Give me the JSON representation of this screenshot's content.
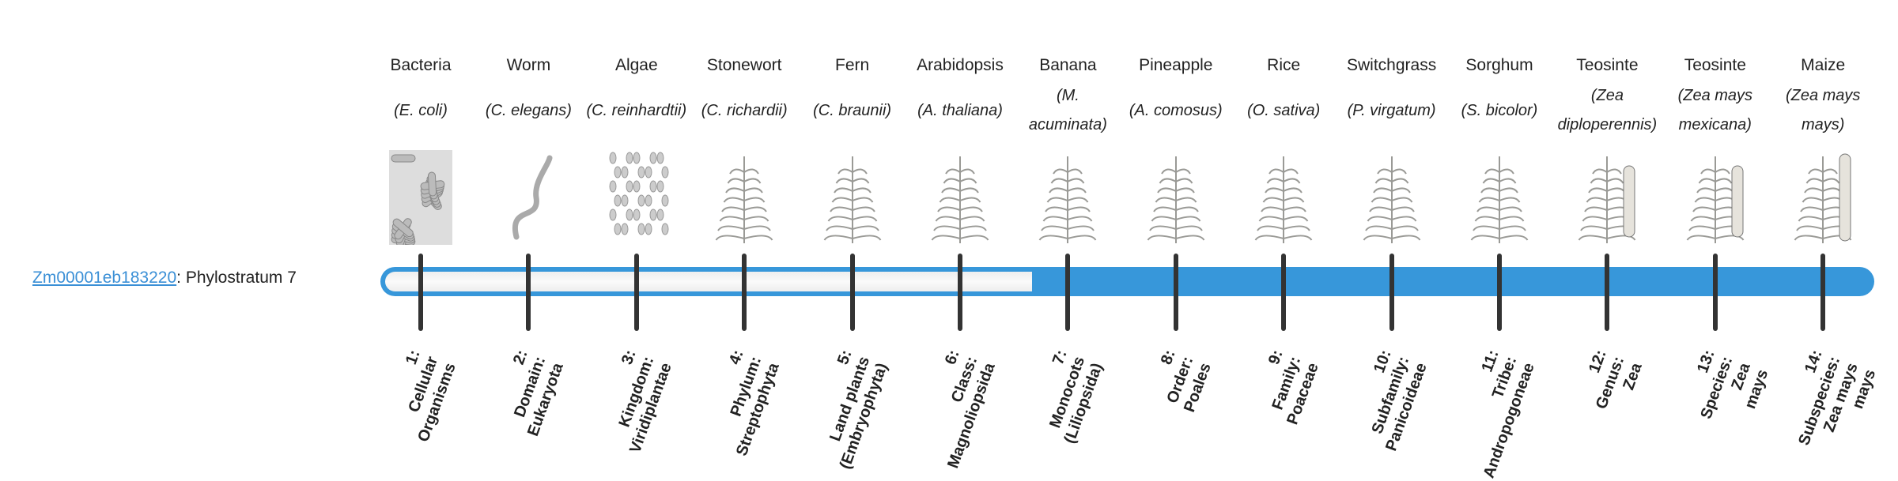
{
  "gene": {
    "id": "Zm00001eb183220",
    "suffix": ": Phylostratum 7"
  },
  "phylostratum": 7,
  "colors": {
    "accent": "#3797da",
    "tick": "#333333",
    "empty": "#f5f5f5"
  },
  "organisms": [
    {
      "common": "Bacteria",
      "species": "(E. coli)",
      "icon": "bacteria-illustration"
    },
    {
      "common": "Worm",
      "species": "(C. elegans)",
      "icon": "worm-illustration"
    },
    {
      "common": "Algae",
      "species": "(C. reinhardtii)",
      "icon": "algae-illustration"
    },
    {
      "common": "Stonewort",
      "species": "(C. richardii)",
      "icon": "stonewort-illustration"
    },
    {
      "common": "Fern",
      "species": "(C. braunii)",
      "icon": "fern-illustration"
    },
    {
      "common": "Arabidopsis",
      "species": "(A. thaliana)",
      "icon": "arabidopsis-illustration"
    },
    {
      "common": "Banana",
      "species": "(M. acuminata)",
      "icon": "banana-illustration"
    },
    {
      "common": "Pineapple",
      "species": "(A. comosus)",
      "icon": "pineapple-illustration"
    },
    {
      "common": "Rice",
      "species": "(O. sativa)",
      "icon": "rice-illustration"
    },
    {
      "common": "Switchgrass",
      "species": "(P. virgatum)",
      "icon": "switchgrass-illustration"
    },
    {
      "common": "Sorghum",
      "species": "(S. bicolor)",
      "icon": "sorghum-illustration"
    },
    {
      "common": "Teosinte",
      "species": "(Zea diploperennis)",
      "icon": "teosinte-illustration"
    },
    {
      "common": "Teosinte",
      "species": "(Zea mays mexicana)",
      "icon": "teosinte-mexicana-illustration"
    },
    {
      "common": "Maize",
      "species": "(Zea mays mays)",
      "icon": "maize-illustration"
    }
  ],
  "strata": [
    {
      "line1": "1:",
      "line2": "Cellular",
      "line3": "Organisms"
    },
    {
      "line1": "2:",
      "line2": "Domain:",
      "line3": "Eukaryota"
    },
    {
      "line1": "3:",
      "line2": "Kingdom:",
      "line3": "Viridiplantae"
    },
    {
      "line1": "4:",
      "line2": "Phylum:",
      "line3": "Streptophyta"
    },
    {
      "line1": "5:",
      "line2": "Land plants",
      "line3": "(Embryophyta)"
    },
    {
      "line1": "6:",
      "line2": "Class:",
      "line3": "Magnoliopsida"
    },
    {
      "line1": "7:",
      "line2": "Monocots",
      "line3": "(Liliopsida)"
    },
    {
      "line1": "8:",
      "line2": "Order:",
      "line3": "Poales"
    },
    {
      "line1": "9:",
      "line2": "Family:",
      "line3": "Poaceae"
    },
    {
      "line1": "10:",
      "line2": "Subfamily:",
      "line3": "Panicoideae"
    },
    {
      "line1": "11:",
      "line2": "Tribe:",
      "line3": "Andropogoneae"
    },
    {
      "line1": "12:",
      "line2": "Genus:",
      "line3": "Zea"
    },
    {
      "line1": "13:",
      "line2": "Species:",
      "line3": "Zea",
      "line4": "mays"
    },
    {
      "line1": "14:",
      "line2": "Subspecies:",
      "line3": "Zea mays",
      "line4": "mays"
    }
  ]
}
